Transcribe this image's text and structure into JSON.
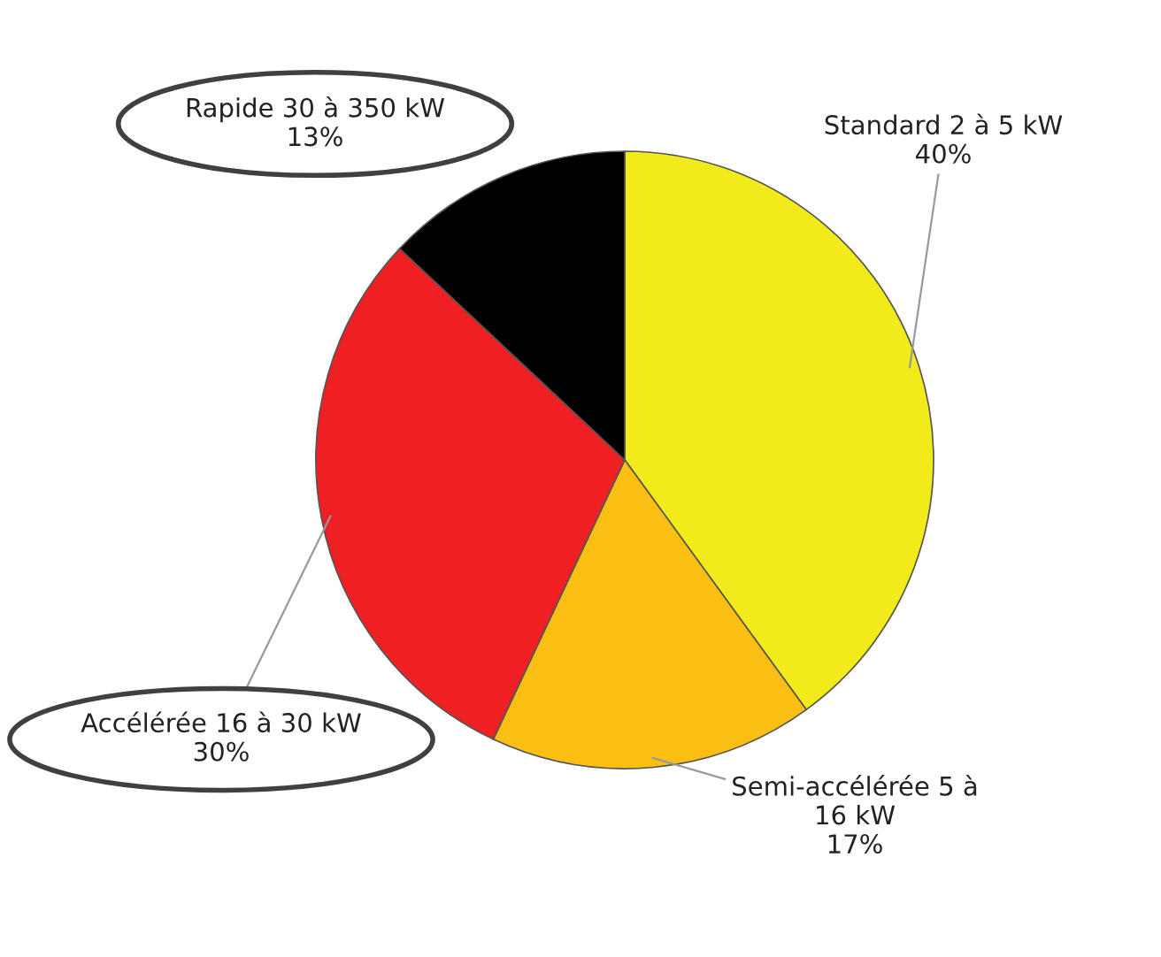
{
  "chart_data": {
    "type": "pie",
    "categories": [
      "Standard 2 à 5 kW",
      "Semi-accélérée 5 à\n16 kW",
      "Accélérée 16 à 30 kW",
      "Rapide 30 à 350 kW"
    ],
    "values": [
      40,
      17,
      30,
      13
    ],
    "value_labels": [
      "40%",
      "17%",
      "30%",
      "13%"
    ],
    "colors": [
      "#f2ea1a",
      "#fbbf14",
      "#ee2024",
      "#000000"
    ]
  }
}
